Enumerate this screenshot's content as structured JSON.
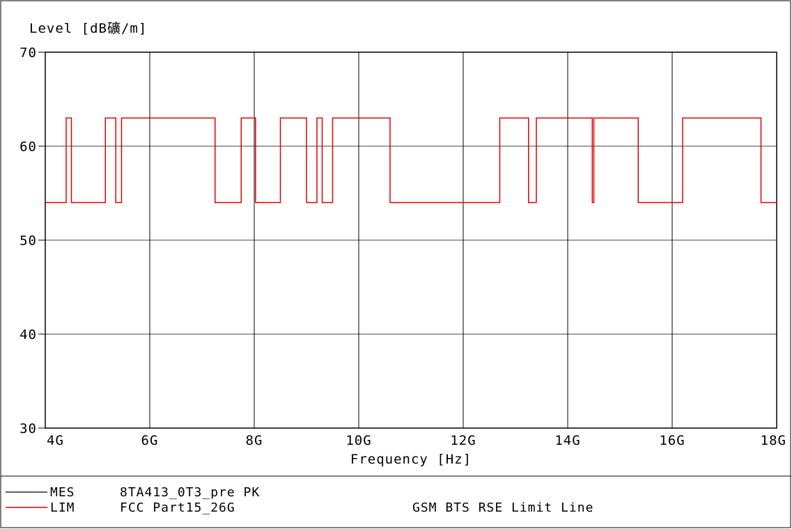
{
  "chart_data": {
    "type": "line",
    "ylabel": "Level [dB礦/m]",
    "xlabel": "Frequency [Hz]",
    "xlim": [
      4000000000,
      18000000000
    ],
    "ylim": [
      30,
      70
    ],
    "x_ticks": [
      4000000000,
      6000000000,
      8000000000,
      10000000000,
      12000000000,
      14000000000,
      16000000000,
      18000000000
    ],
    "x_tick_labels": [
      "4G",
      "6G",
      "8G",
      "10G",
      "12G",
      "14G",
      "16G",
      "18G"
    ],
    "y_ticks": [
      30,
      40,
      50,
      60,
      70
    ],
    "y_tick_labels": [
      "30",
      "40",
      "50",
      "60",
      "70"
    ],
    "grid": true,
    "series": [
      {
        "name": "LIM",
        "color": "#e00000",
        "step": true,
        "x": [
          4000000000,
          4400000000,
          4400000000,
          4500000000,
          4500000000,
          5150000000,
          5150000000,
          5350000000,
          5350000000,
          5460000000,
          5460000000,
          7250000000,
          7250000000,
          7750000000,
          7750000000,
          8025000000,
          8025000000,
          8500000000,
          8500000000,
          9000000000,
          9000000000,
          9200000000,
          9200000000,
          9300000000,
          9300000000,
          9500000000,
          9500000000,
          10600000000,
          10600000000,
          12700000000,
          12700000000,
          13250000000,
          13250000000,
          13400000000,
          13400000000,
          14470000000,
          14470000000,
          14500000000,
          14500000000,
          15350000000,
          15350000000,
          16200000000,
          16200000000,
          17700000000,
          17700000000,
          18000000000
        ],
        "y": [
          54,
          54,
          63,
          63,
          54,
          54,
          63,
          63,
          54,
          54,
          63,
          63,
          54,
          54,
          63,
          63,
          54,
          54,
          63,
          63,
          54,
          54,
          63,
          63,
          54,
          54,
          63,
          63,
          54,
          54,
          63,
          63,
          54,
          54,
          63,
          63,
          54,
          54,
          63,
          63,
          54,
          54,
          63,
          63,
          54,
          54
        ]
      }
    ]
  },
  "legend": [
    {
      "tag": "MES",
      "name": "8TA413_0T3_pre PK",
      "note": "",
      "color": "#000000"
    },
    {
      "tag": "LIM",
      "name": "FCC Part15_26G",
      "note": "GSM BTS RSE Limit Line",
      "color": "#e00000"
    }
  ]
}
